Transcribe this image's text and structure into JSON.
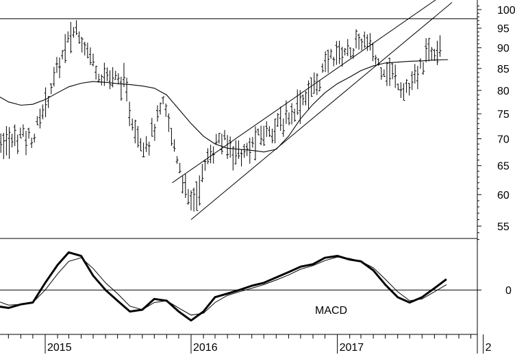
{
  "chart_data": [
    {
      "type": "ohlc",
      "scale": "log",
      "ylim": [
        52,
        102
      ],
      "y_ticks": [
        "100",
        "95",
        "90",
        "85",
        "80",
        "75",
        "70",
        "65",
        "60",
        "55"
      ],
      "reference_line": 97.5,
      "moving_average": [
        [
          "2014-08-01",
          80.5
        ],
        [
          "2014-09-01",
          79
        ],
        [
          "2014-10-01",
          77.5
        ],
        [
          "2014-11-01",
          76.8
        ],
        [
          "2014-12-01",
          77
        ],
        [
          "2015-01-01",
          78
        ],
        [
          "2015-02-01",
          79.5
        ],
        [
          "2015-03-01",
          80.8
        ],
        [
          "2015-04-01",
          81.6
        ],
        [
          "2015-05-01",
          82
        ],
        [
          "2015-06-01",
          81.8
        ],
        [
          "2015-07-01",
          81.5
        ],
        [
          "2015-08-01",
          81.3
        ],
        [
          "2015-09-01",
          81
        ],
        [
          "2015-10-01",
          80.5
        ],
        [
          "2015-11-01",
          79
        ],
        [
          "2015-12-01",
          76
        ],
        [
          "2016-01-01",
          73
        ],
        [
          "2016-02-01",
          70.5
        ],
        [
          "2016-03-01",
          69
        ],
        [
          "2016-04-01",
          68.2
        ],
        [
          "2016-05-01",
          68
        ],
        [
          "2016-06-01",
          67.8
        ],
        [
          "2016-07-01",
          67.5
        ],
        [
          "2016-08-01",
          68
        ],
        [
          "2016-09-01",
          70.5
        ],
        [
          "2016-10-01",
          74
        ],
        [
          "2016-11-01",
          77
        ],
        [
          "2016-12-01",
          79.5
        ],
        [
          "2017-01-01",
          81.5
        ],
        [
          "2017-02-01",
          83
        ],
        [
          "2017-03-01",
          84.5
        ],
        [
          "2017-04-01",
          85.6
        ],
        [
          "2017-05-01",
          86.3
        ],
        [
          "2017-06-01",
          86.5
        ],
        [
          "2017-07-01",
          86.7
        ],
        [
          "2017-08-01",
          86.8
        ],
        [
          "2017-09-01",
          87
        ],
        [
          "2017-10-05",
          87.1
        ]
      ],
      "trend_channel": {
        "upper": [
          [
            "2015-11-15",
            62
          ],
          [
            "2017-10-15",
            106
          ]
        ],
        "lower": [
          [
            "2016-01-01",
            56
          ],
          [
            "2017-10-15",
            102
          ]
        ]
      },
      "price_anchors": [
        [
          "2014-08-01",
          78
        ],
        [
          "2014-09-01",
          70
        ],
        [
          "2014-10-01",
          69
        ],
        [
          "2014-11-01",
          71
        ],
        [
          "2014-12-01",
          70
        ],
        [
          "2015-01-01",
          77
        ],
        [
          "2015-02-01",
          85
        ],
        [
          "2015-03-01",
          92
        ],
        [
          "2015-03-20",
          95
        ],
        [
          "2015-04-15",
          90
        ],
        [
          "2015-05-15",
          84
        ],
        [
          "2015-06-15",
          83
        ],
        [
          "2015-07-15",
          82
        ],
        [
          "2015-08-05",
          74
        ],
        [
          "2015-08-25",
          70
        ],
        [
          "2015-09-15",
          69
        ],
        [
          "2015-10-10",
          74
        ],
        [
          "2015-10-25",
          77
        ],
        [
          "2015-11-15",
          70
        ],
        [
          "2015-12-10",
          63
        ],
        [
          "2015-12-25",
          59
        ],
        [
          "2016-01-15",
          60
        ],
        [
          "2016-02-10",
          66
        ],
        [
          "2016-03-10",
          70
        ],
        [
          "2016-04-15",
          68
        ],
        [
          "2016-05-15",
          67
        ],
        [
          "2016-06-15",
          70
        ],
        [
          "2016-07-15",
          72
        ],
        [
          "2016-08-15",
          73
        ],
        [
          "2016-09-15",
          76
        ],
        [
          "2016-10-15",
          79
        ],
        [
          "2016-11-15",
          82
        ],
        [
          "2016-12-15",
          88
        ],
        [
          "2017-01-15",
          89
        ],
        [
          "2017-02-15",
          90
        ],
        [
          "2017-03-05",
          92
        ],
        [
          "2017-03-25",
          90
        ],
        [
          "2017-04-15",
          86
        ],
        [
          "2017-05-15",
          84
        ],
        [
          "2017-06-10",
          81
        ],
        [
          "2017-07-01",
          80.5
        ],
        [
          "2017-07-20",
          83
        ],
        [
          "2017-08-10",
          88
        ],
        [
          "2017-09-01",
          90
        ],
        [
          "2017-09-15",
          92
        ]
      ]
    },
    {
      "type": "line",
      "label": "MACD",
      "y_ticks": [
        "0"
      ],
      "ylim": [
        -1.2,
        1.4
      ],
      "zero_line": 0,
      "series": [
        {
          "style": "thick",
          "points": [
            [
              "2014-08-01",
              0
            ],
            [
              "2014-09-01",
              -0.45
            ],
            [
              "2014-10-01",
              -0.5
            ],
            [
              "2014-11-01",
              -0.4
            ],
            [
              "2014-12-01",
              -0.35
            ],
            [
              "2015-01-01",
              0.2
            ],
            [
              "2015-02-01",
              0.7
            ],
            [
              "2015-03-01",
              1.05
            ],
            [
              "2015-04-01",
              0.95
            ],
            [
              "2015-05-01",
              0.4
            ],
            [
              "2015-06-01",
              0.0
            ],
            [
              "2015-07-01",
              -0.3
            ],
            [
              "2015-08-01",
              -0.6
            ],
            [
              "2015-09-01",
              -0.55
            ],
            [
              "2015-10-01",
              -0.25
            ],
            [
              "2015-11-01",
              -0.3
            ],
            [
              "2015-12-01",
              -0.6
            ],
            [
              "2016-01-01",
              -0.85
            ],
            [
              "2016-02-01",
              -0.6
            ],
            [
              "2016-03-01",
              -0.2
            ],
            [
              "2016-04-01",
              -0.1
            ],
            [
              "2016-05-01",
              0.0
            ],
            [
              "2016-06-01",
              0.12
            ],
            [
              "2016-07-01",
              0.2
            ],
            [
              "2016-08-01",
              0.35
            ],
            [
              "2016-09-01",
              0.5
            ],
            [
              "2016-10-01",
              0.65
            ],
            [
              "2016-11-01",
              0.72
            ],
            [
              "2016-12-01",
              0.9
            ],
            [
              "2017-01-01",
              0.95
            ],
            [
              "2017-02-01",
              0.85
            ],
            [
              "2017-03-01",
              0.8
            ],
            [
              "2017-04-01",
              0.55
            ],
            [
              "2017-05-01",
              0.15
            ],
            [
              "2017-06-01",
              -0.2
            ],
            [
              "2017-07-01",
              -0.35
            ],
            [
              "2017-08-01",
              -0.2
            ],
            [
              "2017-09-01",
              0.05
            ],
            [
              "2017-10-01",
              0.3
            ]
          ]
        },
        {
          "style": "thin",
          "points": [
            [
              "2014-08-01",
              -0.05
            ],
            [
              "2014-09-01",
              -0.3
            ],
            [
              "2014-10-01",
              -0.42
            ],
            [
              "2014-11-01",
              -0.4
            ],
            [
              "2014-12-01",
              -0.35
            ],
            [
              "2015-01-01",
              0.0
            ],
            [
              "2015-02-01",
              0.45
            ],
            [
              "2015-03-01",
              0.8
            ],
            [
              "2015-04-01",
              0.9
            ],
            [
              "2015-05-01",
              0.6
            ],
            [
              "2015-06-01",
              0.2
            ],
            [
              "2015-07-01",
              -0.1
            ],
            [
              "2015-08-01",
              -0.45
            ],
            [
              "2015-09-01",
              -0.55
            ],
            [
              "2015-10-01",
              -0.35
            ],
            [
              "2015-11-01",
              -0.3
            ],
            [
              "2015-12-01",
              -0.5
            ],
            [
              "2016-01-01",
              -0.7
            ],
            [
              "2016-02-01",
              -0.65
            ],
            [
              "2016-03-01",
              -0.35
            ],
            [
              "2016-04-01",
              -0.15
            ],
            [
              "2016-05-01",
              -0.05
            ],
            [
              "2016-06-01",
              0.05
            ],
            [
              "2016-07-01",
              0.15
            ],
            [
              "2016-08-01",
              0.28
            ],
            [
              "2016-09-01",
              0.42
            ],
            [
              "2016-10-01",
              0.58
            ],
            [
              "2016-11-01",
              0.68
            ],
            [
              "2016-12-01",
              0.82
            ],
            [
              "2017-01-01",
              0.92
            ],
            [
              "2017-02-01",
              0.88
            ],
            [
              "2017-03-01",
              0.8
            ],
            [
              "2017-04-01",
              0.62
            ],
            [
              "2017-05-01",
              0.3
            ],
            [
              "2017-06-01",
              -0.05
            ],
            [
              "2017-07-01",
              -0.3
            ],
            [
              "2017-08-01",
              -0.25
            ],
            [
              "2017-09-01",
              -0.05
            ],
            [
              "2017-10-01",
              0.15
            ]
          ]
        }
      ]
    }
  ],
  "x_axis": {
    "labels": [
      {
        "text": "2015",
        "date": "2015-01-01"
      },
      {
        "text": "2016",
        "date": "2016-01-01"
      },
      {
        "text": "2017",
        "date": "2017-01-01"
      },
      {
        "text": "2",
        "date": "2018-01-01"
      }
    ]
  }
}
